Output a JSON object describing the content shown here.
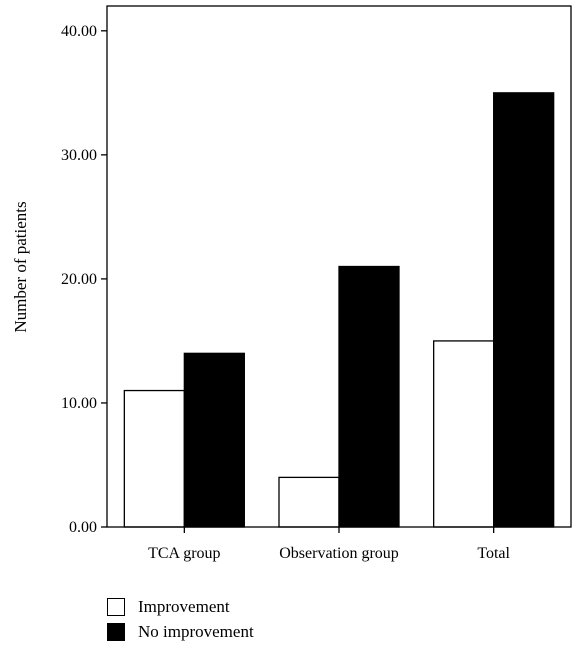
{
  "chart_data": {
    "type": "bar",
    "categories": [
      "TCA group",
      "Observation group",
      "Total"
    ],
    "series": [
      {
        "name": "Improvement",
        "values": [
          11,
          4,
          15
        ],
        "color": "#ffffff"
      },
      {
        "name": "No improvement",
        "values": [
          14,
          21,
          35
        ],
        "color": "#000000"
      }
    ],
    "xlabel": "",
    "ylabel": "Number of patients",
    "ylim": [
      0,
      42
    ],
    "yticks": [
      0,
      10,
      20,
      30,
      40
    ],
    "ytick_labels": [
      "0.00",
      "10.00",
      "20.00",
      "30.00",
      "40.00"
    ],
    "grid": false,
    "legend_position": "bottom-left"
  }
}
